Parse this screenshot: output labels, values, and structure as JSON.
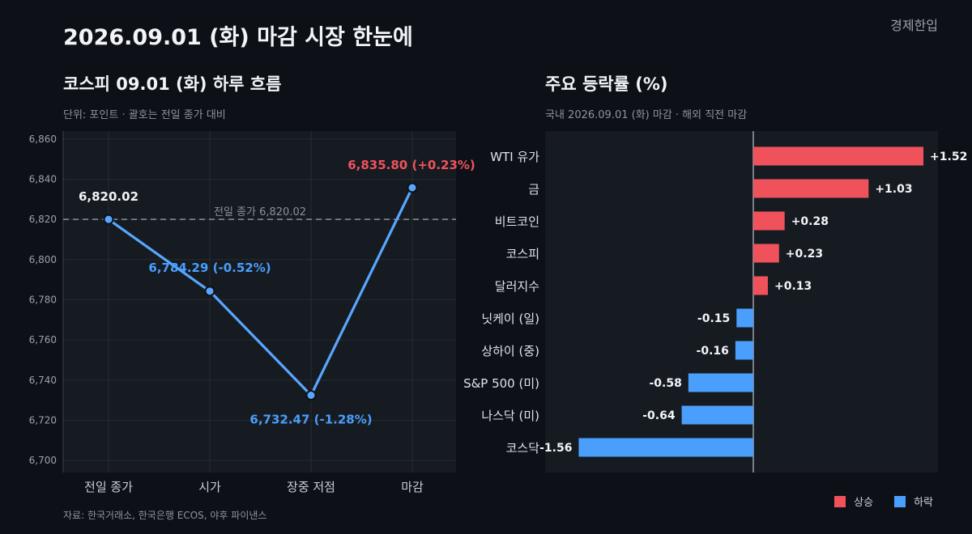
{
  "title": "2026.09.01 (화) 마감 시장 한눈에",
  "brand": "경제한입",
  "source": "자료: 한국거래소, 한국은행 ECOS, 야후 파이낸스",
  "colors": {
    "up": "#f0525c",
    "down": "#4a9efc",
    "line": "#58a6ff",
    "bg": "#0d1117",
    "panel": "#161b22"
  },
  "chart_data": [
    {
      "type": "line",
      "title": "코스피 09.01 (화) 하루 흐름",
      "subtitle": "단위: 포인트 · 괄호는 전일 종가 대비",
      "categories": [
        "전일 종가",
        "시가",
        "장중 저점",
        "마감"
      ],
      "values": [
        6820.02,
        6784.29,
        6732.47,
        6835.8
      ],
      "point_labels": [
        "6,820.02",
        "6,784.29 (-0.52%)",
        "6,732.47 (-1.28%)",
        "6,835.80 (+0.23%)"
      ],
      "reference_line": {
        "value": 6820.02,
        "label": "전일 종가 6,820.02"
      },
      "ylim": [
        6694,
        6864
      ],
      "yticks": [
        6700,
        6720,
        6740,
        6760,
        6780,
        6800,
        6820,
        6840,
        6860
      ],
      "ytick_labels": [
        "6,700",
        "6,720",
        "6,740",
        "6,760",
        "6,780",
        "6,800",
        "6,820",
        "6,840",
        "6,860"
      ],
      "grid": true
    },
    {
      "type": "bar",
      "orientation": "horizontal",
      "title": "주요 등락률 (%)",
      "subtitle": "국내 2026.09.01 (화) 마감 · 해외 직전 마감",
      "categories": [
        "WTI 유가",
        "금",
        "비트코인",
        "코스피",
        "달러지수",
        "닛케이 (일)",
        "상하이 (중)",
        "S&P 500 (미)",
        "나스닥 (미)",
        "코스닥"
      ],
      "values": [
        1.52,
        1.03,
        0.28,
        0.23,
        0.13,
        -0.15,
        -0.16,
        -0.58,
        -0.64,
        -1.56
      ],
      "value_labels": [
        "+1.52",
        "+1.03",
        "+0.28",
        "+0.23",
        "+0.13",
        "-0.15",
        "-0.16",
        "-0.58",
        "-0.64",
        "-1.56"
      ],
      "xlim": [
        -1.86,
        1.65
      ],
      "legend": [
        {
          "name": "상승",
          "color": "#f0525c"
        },
        {
          "name": "하락",
          "color": "#4a9efc"
        }
      ],
      "legend_position": "bottom-right"
    }
  ]
}
